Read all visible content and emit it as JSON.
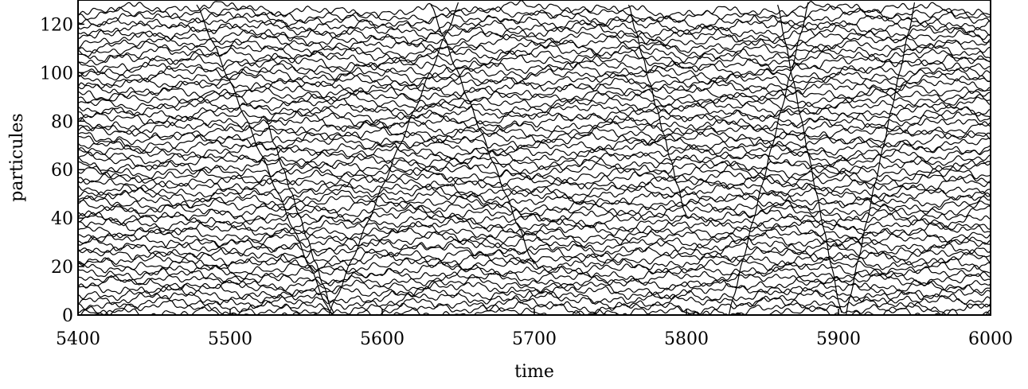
{
  "chart_data": {
    "type": "line",
    "title": "",
    "xlabel": "time",
    "ylabel": "particules",
    "xlim": [
      5400,
      6000
    ],
    "ylim": [
      0,
      130
    ],
    "xticks": [
      5400,
      5500,
      5600,
      5700,
      5800,
      5900,
      6000
    ],
    "yticks": [
      0,
      20,
      40,
      60,
      80,
      100,
      120
    ],
    "grid": false,
    "legend": "none",
    "line_color": "#000000",
    "series_description": "Trajectories of 64 particles, baseline positions spaced ~2 units apart from 0 to 128, each with small oscillations (amplitude ~1.5) plus several rapid diagonal crossings traversing the full range.",
    "series": {
      "count": 64,
      "baseline_start": 0,
      "baseline_spacing": 2,
      "oscillation_amplitude": 1.5
    },
    "crossings": [
      {
        "t0": 5478,
        "t1": 5566,
        "y0": 128,
        "y1": 0
      },
      {
        "t0": 5524,
        "t1": 5568,
        "y0": 80,
        "y1": 0
      },
      {
        "t0": 5565,
        "t1": 5650,
        "y0": 0,
        "y1": 128
      },
      {
        "t0": 5632,
        "t1": 5700,
        "y0": 128,
        "y1": 20
      },
      {
        "t0": 5762,
        "t1": 5800,
        "y0": 128,
        "y1": 40
      },
      {
        "t0": 5828,
        "t1": 5880,
        "y0": 0,
        "y1": 128
      },
      {
        "t0": 5860,
        "t1": 5902,
        "y0": 128,
        "y1": 0
      },
      {
        "t0": 5905,
        "t1": 5950,
        "y0": 0,
        "y1": 128
      }
    ]
  }
}
